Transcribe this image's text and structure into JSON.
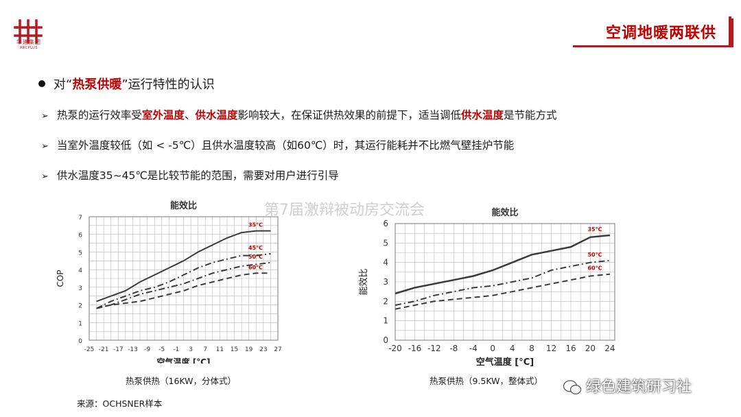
{
  "logo": {
    "cn": "华建集团",
    "en": "ARCPLUS"
  },
  "title": "空调地暖两联供",
  "heading": {
    "pre": "对“",
    "highlight": "热泵供暖",
    "post": "”运行特性的认识"
  },
  "bullets": [
    {
      "parts": [
        {
          "text": "热泵的运行效率受",
          "red": false
        },
        {
          "text": "室外温度",
          "red": true
        },
        {
          "text": "、",
          "red": false
        },
        {
          "text": "供水温度",
          "red": true
        },
        {
          "text": "影响较大，在保证供热效果的前提下，适当调低",
          "red": false
        },
        {
          "text": "供水温度",
          "red": true
        },
        {
          "text": "是节能方式",
          "red": false
        }
      ]
    },
    {
      "parts": [
        {
          "text": "当室外温度较低（如 < -5℃）且供水温度较高（如60℃）时，其运行能耗并不比燃气壁挂炉节能",
          "red": false
        }
      ]
    },
    {
      "parts": [
        {
          "text": "供水温度35~45℃是比较节能的范围，需要对用户进行引导",
          "red": false
        }
      ]
    }
  ],
  "watermark": "第7届激辩被动房交流会",
  "chart_data": [
    {
      "type": "line",
      "title": "能效比",
      "xlabel": "空气温度 [°C]",
      "ylabel": "COP",
      "caption": "热泵供热（16KW，分体式）",
      "x_ticks": [
        -25,
        -21,
        -17,
        -13,
        -9,
        -5,
        -1,
        3,
        7,
        11,
        15,
        19,
        23,
        27
      ],
      "y_ticks": [
        0,
        1,
        2,
        3,
        4,
        5,
        6,
        7
      ],
      "xlim": [
        -25,
        27
      ],
      "ylim": [
        0,
        7
      ],
      "grid": true,
      "series": [
        {
          "name": "35℃",
          "style": "solid",
          "x": [
            -23,
            -19,
            -15,
            -11,
            -7,
            -3,
            1,
            5,
            9,
            13,
            17,
            21,
            25
          ],
          "y": [
            2.2,
            2.5,
            2.8,
            3.3,
            3.7,
            4.1,
            4.5,
            5.0,
            5.4,
            5.8,
            6.1,
            6.2,
            6.2
          ]
        },
        {
          "name": "45℃",
          "style": "dashdot",
          "x": [
            -23,
            -19,
            -15,
            -11,
            -7,
            -3,
            1,
            5,
            9,
            13,
            17,
            21,
            25
          ],
          "y": [
            1.8,
            2.2,
            2.5,
            2.8,
            3.0,
            3.3,
            3.7,
            4.1,
            4.4,
            4.6,
            4.8,
            4.8,
            4.9
          ]
        },
        {
          "name": "50℃",
          "style": "dashdot",
          "x": [
            -23,
            -19,
            -15,
            -11,
            -7,
            -3,
            1,
            5,
            9,
            13,
            17,
            21,
            25
          ],
          "y": [
            1.8,
            2.0,
            2.3,
            2.6,
            2.8,
            3.0,
            3.2,
            3.5,
            3.8,
            4.0,
            4.2,
            4.3,
            4.4
          ]
        },
        {
          "name": "60℃",
          "style": "dashed",
          "x": [
            -23,
            -19,
            -15,
            -11,
            -7,
            -3,
            1,
            5,
            9,
            13,
            17,
            21,
            25
          ],
          "y": [
            1.8,
            2.0,
            2.1,
            2.2,
            2.4,
            2.6,
            2.8,
            3.1,
            3.3,
            3.5,
            3.7,
            3.8,
            3.8
          ]
        }
      ]
    },
    {
      "type": "line",
      "title": "能效比",
      "xlabel": "空气温度 [°C]",
      "ylabel": "能效比",
      "caption": "热泵供热（9.5KW，整体式）",
      "x_ticks": [
        -20,
        -16,
        -12,
        -8,
        -4,
        0,
        4,
        8,
        12,
        16,
        20,
        24
      ],
      "y_ticks": [
        0,
        1,
        2,
        3,
        4,
        5,
        6
      ],
      "xlim": [
        -20,
        25
      ],
      "ylim": [
        0,
        6
      ],
      "grid": true,
      "series": [
        {
          "name": "35℃",
          "style": "solid",
          "x": [
            -20,
            -16,
            -12,
            -8,
            -4,
            0,
            4,
            8,
            12,
            16,
            20,
            24
          ],
          "y": [
            2.4,
            2.7,
            2.9,
            3.1,
            3.3,
            3.6,
            4.0,
            4.4,
            4.6,
            4.8,
            5.3,
            5.4
          ]
        },
        {
          "name": "50℃",
          "style": "dashdot",
          "x": [
            -20,
            -16,
            -12,
            -8,
            -4,
            0,
            4,
            8,
            12,
            16,
            20,
            24
          ],
          "y": [
            1.8,
            2.0,
            2.3,
            2.5,
            2.7,
            2.8,
            3.0,
            3.2,
            3.6,
            3.8,
            4.0,
            4.1
          ]
        },
        {
          "name": "60℃",
          "style": "dashed",
          "x": [
            -20,
            -16,
            -12,
            -8,
            -4,
            0,
            4,
            8,
            12,
            16,
            20,
            24
          ],
          "y": [
            1.6,
            1.8,
            2.0,
            2.1,
            2.2,
            2.3,
            2.5,
            2.7,
            2.9,
            3.1,
            3.3,
            3.4
          ]
        }
      ]
    }
  ],
  "source": "来源：OCHSNER样本",
  "wechat_label": "绿色建筑研习社",
  "colors": {
    "accent": "#c00000",
    "grid": "#b8b8b8",
    "line": "#3a3a3a"
  }
}
